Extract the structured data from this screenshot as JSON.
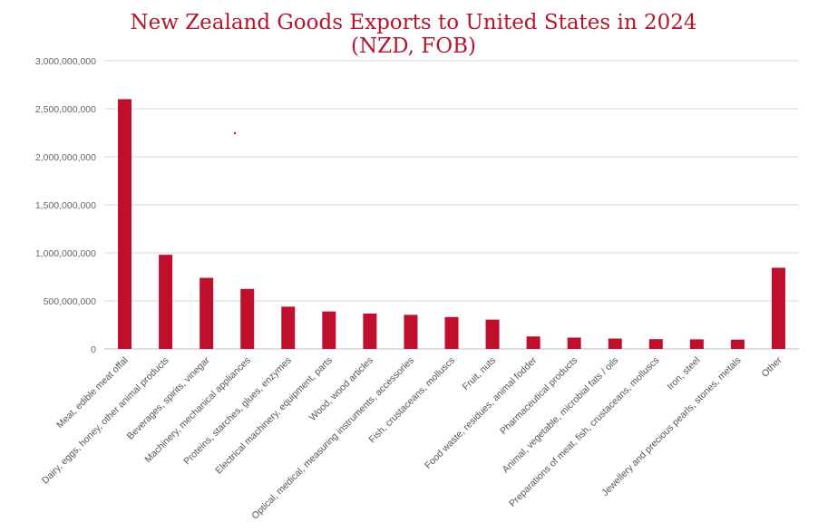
{
  "chart_data": {
    "type": "bar",
    "title": "New Zealand Goods Exports to United States in 2024",
    "subtitle": "(NZD, FOB)",
    "xlabel": "",
    "ylabel": "",
    "ylim": [
      0,
      3000000000
    ],
    "yticks": [
      0,
      500000000,
      1000000000,
      1500000000,
      2000000000,
      2500000000,
      3000000000
    ],
    "ytick_labels": [
      "0",
      "500,000,000",
      "1,000,000,000",
      "1,500,000,000",
      "2,000,000,000",
      "2,500,000,000",
      "3,000,000,000"
    ],
    "grid": true,
    "legend": "none",
    "bar_color": "#c00f2c",
    "title_color": "#b5162f",
    "categories": [
      "Meat, edible meat offal",
      "Dairy, eggs, honey, other animal products",
      "Beverages, spirits, vinegar",
      "Machinery, mechanical appliances",
      "Proteins, starches, glues, enzymes",
      "Electrical machinery, equipment, parts",
      "Wood, wood articles",
      "Optical, medical, measuring instruments, accessories",
      "Fish, crustaceans, molluscs",
      "Fruit, nuts",
      "Food waste, residues, animal fodder",
      "Pharmaceutical products",
      "Animal, vegetable, microbial fats / oils",
      "Preparations of meat, fish, crustaceans, molluscs",
      "Iron, steel",
      "Jewellery and precious pearls, stones, metals",
      "Other"
    ],
    "values": [
      2600000000,
      980000000,
      740000000,
      625000000,
      440000000,
      390000000,
      368000000,
      355000000,
      332000000,
      305000000,
      130000000,
      118000000,
      108000000,
      102000000,
      100000000,
      97000000,
      845000000
    ]
  }
}
